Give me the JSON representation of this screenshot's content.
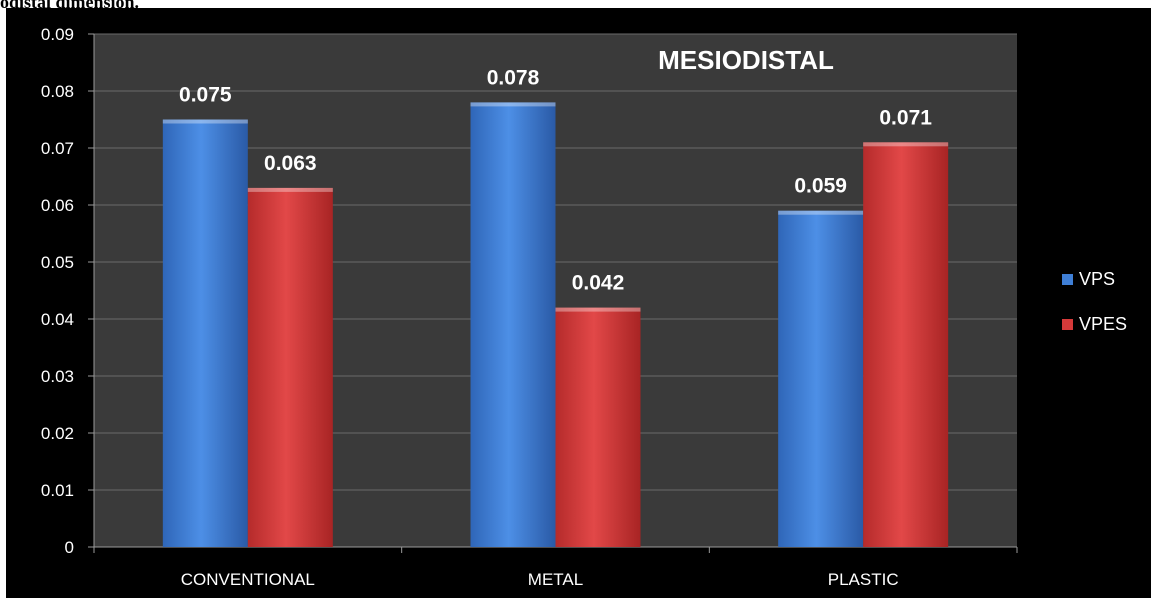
{
  "caption": "odistal dimension.",
  "chart_data": {
    "type": "bar",
    "title": "MESIODISTAL",
    "categories": [
      "CONVENTIONAL",
      "METAL",
      "PLASTIC"
    ],
    "series": [
      {
        "name": "VPS",
        "values": [
          0.075,
          0.078,
          0.059
        ],
        "color": "#3f7fd6"
      },
      {
        "name": "VPES",
        "values": [
          0.063,
          0.042,
          0.071
        ],
        "color": "#d63a3a"
      }
    ],
    "data_labels": [
      [
        "0.075",
        "0.078",
        "0.059"
      ],
      [
        "0.063",
        "0.042",
        "0.071"
      ]
    ],
    "ylim": [
      0,
      0.09
    ],
    "yticks": [
      "0",
      "0.01",
      "0.02",
      "0.03",
      "0.04",
      "0.05",
      "0.06",
      "0.07",
      "0.08",
      "0.09"
    ],
    "grid": true,
    "legend_position": "right",
    "plot_background": "#3a3a3a"
  }
}
